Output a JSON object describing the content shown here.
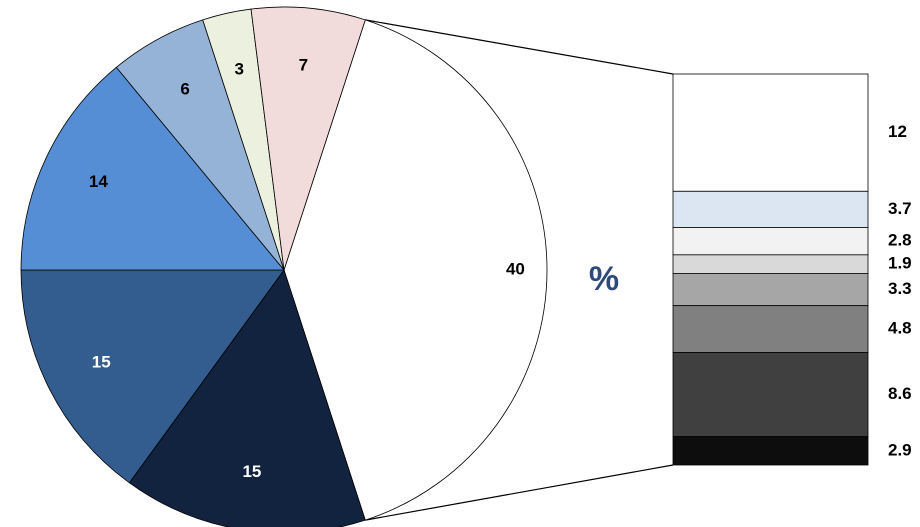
{
  "chart_data": {
    "type": "pie",
    "subtype": "bar-of-pie",
    "unit_label": "%",
    "unit_color": "#2f4a7a",
    "pie": {
      "values": [
        40,
        15,
        15,
        14,
        6,
        3,
        7
      ],
      "labels": [
        "40",
        "15",
        "15",
        "14",
        "6",
        "3",
        "7"
      ],
      "colors": [
        "#ffffff",
        "#12233f",
        "#335c8f",
        "#558ed5",
        "#95b3d7",
        "#ebf1de",
        "#f2dcdb"
      ],
      "label_colors": [
        "#000000",
        "#ffffff",
        "#ffffff",
        "#000000",
        "#000000",
        "#000000",
        "#000000"
      ],
      "exploded_index": 0
    },
    "bar": {
      "values": [
        12,
        3.7,
        2.8,
        1.9,
        3.3,
        4.8,
        8.6,
        2.9
      ],
      "labels": [
        "12",
        "3.7",
        "2.8",
        "1.9",
        "3.3",
        "4.8",
        "8.6",
        "2.9"
      ],
      "colors": [
        "#ffffff",
        "#dce6f2",
        "#f2f2f2",
        "#d9d9d9",
        "#a6a6a6",
        "#808080",
        "#404040",
        "#0d0d0d"
      ]
    }
  }
}
